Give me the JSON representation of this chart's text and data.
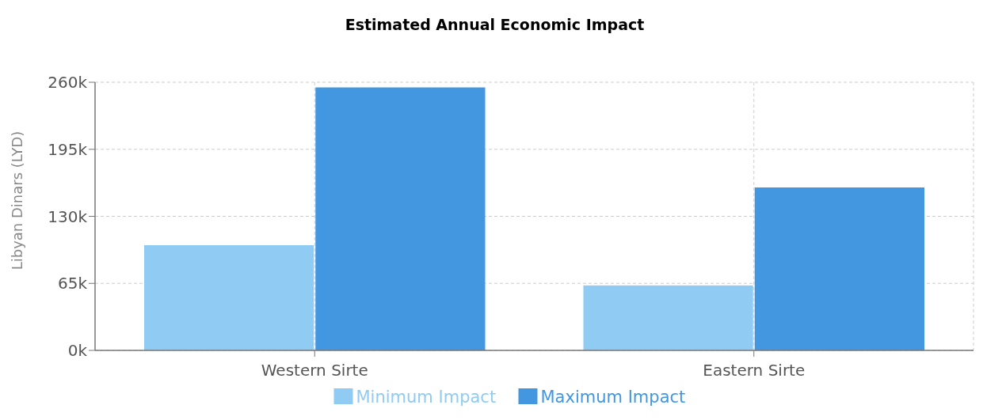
{
  "chart_data": {
    "type": "bar",
    "title": "Estimated Annual Economic Impact",
    "ylabel": "Libyan Dinars (LYD)",
    "categories": [
      "Western Sirte",
      "Eastern Sirte"
    ],
    "series": [
      {
        "name": "Minimum Impact",
        "color": "#8fcbf2",
        "values": [
          102000,
          63000
        ]
      },
      {
        "name": "Maximum Impact",
        "color": "#4397e0",
        "values": [
          255000,
          158000
        ]
      }
    ],
    "ylim": [
      0,
      260000
    ],
    "yticks": [
      {
        "value": 0,
        "label": "0k"
      },
      {
        "value": 65000,
        "label": "65k"
      },
      {
        "value": 130000,
        "label": "130k"
      },
      {
        "value": 195000,
        "label": "195k"
      },
      {
        "value": 260000,
        "label": "260k"
      }
    ],
    "grid": true,
    "legend": "bottom"
  }
}
